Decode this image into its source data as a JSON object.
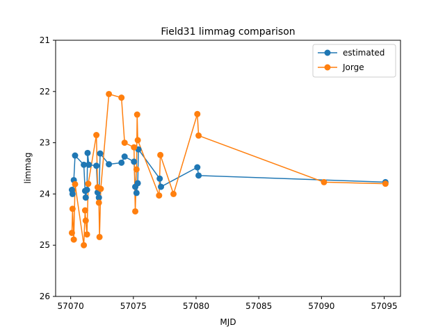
{
  "chart_data": {
    "type": "line",
    "title": "Field31 limmag comparison",
    "xlabel": "MJD",
    "ylabel": "limmag",
    "xlim": [
      57068.8,
      57096.3
    ],
    "ylim": [
      26,
      21
    ],
    "y_inverted": true,
    "xticks": [
      57070,
      57075,
      57080,
      57085,
      57090,
      57095
    ],
    "yticks": [
      21,
      22,
      23,
      24,
      25,
      26
    ],
    "grid": false,
    "legend_position": "top-right",
    "series": [
      {
        "name": "estimated",
        "color": "#1f77b4",
        "points": [
          [
            57070.1,
            23.92
          ],
          [
            57070.15,
            24.0
          ],
          [
            57070.25,
            23.73
          ],
          [
            57070.35,
            23.25
          ],
          [
            57071.05,
            23.43
          ],
          [
            57071.15,
            23.94
          ],
          [
            57071.2,
            24.07
          ],
          [
            57071.3,
            23.92
          ],
          [
            57071.35,
            23.2
          ],
          [
            57071.45,
            23.43
          ],
          [
            57072.05,
            23.45
          ],
          [
            57072.15,
            23.97
          ],
          [
            57072.25,
            24.07
          ],
          [
            57072.35,
            23.21
          ],
          [
            57073.05,
            23.42
          ],
          [
            57074.05,
            23.39
          ],
          [
            57074.3,
            23.27
          ],
          [
            57075.05,
            23.37
          ],
          [
            57075.15,
            23.86
          ],
          [
            57075.25,
            23.98
          ],
          [
            57075.35,
            23.79
          ],
          [
            57075.4,
            23.13
          ],
          [
            57077.1,
            23.7
          ],
          [
            57077.2,
            23.86
          ],
          [
            57080.1,
            23.48
          ],
          [
            57080.2,
            23.64
          ],
          [
            57095.1,
            23.77
          ]
        ]
      },
      {
        "name": "Jorge",
        "color": "#ff7f0e",
        "points": [
          [
            57070.1,
            24.76
          ],
          [
            57070.15,
            24.29
          ],
          [
            57070.25,
            24.89
          ],
          [
            57070.35,
            23.81
          ],
          [
            57071.05,
            25.0
          ],
          [
            57071.15,
            24.32
          ],
          [
            57071.2,
            24.52
          ],
          [
            57071.3,
            24.79
          ],
          [
            57071.4,
            23.8
          ],
          [
            57072.05,
            22.85
          ],
          [
            57072.15,
            23.87
          ],
          [
            57072.25,
            24.17
          ],
          [
            57072.3,
            24.84
          ],
          [
            57072.4,
            23.9
          ],
          [
            57073.05,
            22.05
          ],
          [
            57074.05,
            22.12
          ],
          [
            57074.3,
            23.0
          ],
          [
            57075.05,
            23.09
          ],
          [
            57075.15,
            24.34
          ],
          [
            57075.25,
            23.52
          ],
          [
            57075.3,
            22.45
          ],
          [
            57075.35,
            22.95
          ],
          [
            57077.05,
            24.03
          ],
          [
            57077.15,
            23.24
          ],
          [
            57078.2,
            24.0
          ],
          [
            57080.1,
            22.44
          ],
          [
            57080.2,
            22.86
          ],
          [
            57090.2,
            23.77
          ],
          [
            57095.1,
            23.8
          ]
        ]
      }
    ]
  }
}
